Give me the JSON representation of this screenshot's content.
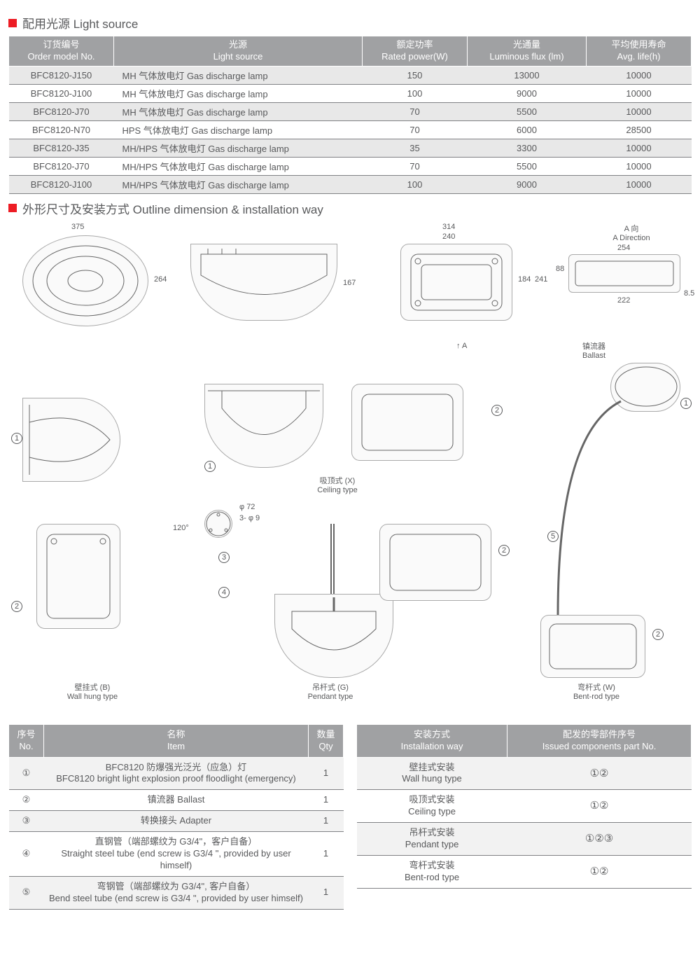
{
  "section1": {
    "title": "配用光源 Light source",
    "columns": [
      {
        "zh": "订货编号",
        "en": "Order model No."
      },
      {
        "zh": "光源",
        "en": "Light source"
      },
      {
        "zh": "额定功率",
        "en": "Rated power(W)"
      },
      {
        "zh": "光通量",
        "en": "Luminous flux (lm)"
      },
      {
        "zh": "平均使用寿命",
        "en": "Avg. life(h)"
      }
    ],
    "rows": [
      [
        "BFC8120-J150",
        "MH 气体放电灯 Gas discharge lamp",
        "150",
        "13000",
        "10000"
      ],
      [
        "BFC8120-J100",
        "MH 气体放电灯 Gas discharge lamp",
        "100",
        "9000",
        "10000"
      ],
      [
        "BFC8120-J70",
        "MH 气体放电灯 Gas discharge lamp",
        "70",
        "5500",
        "10000"
      ],
      [
        "BFC8120-N70",
        "HPS 气体放电灯 Gas discharge lamp",
        "70",
        "6000",
        "28500"
      ],
      [
        "BFC8120-J35",
        "MH/HPS 气体放电灯 Gas discharge lamp",
        "35",
        "3300",
        "10000"
      ],
      [
        "BFC8120-J70",
        "MH/HPS 气体放电灯 Gas discharge lamp",
        "70",
        "5500",
        "10000"
      ],
      [
        "BFC8120-J100",
        "MH/HPS 气体放电灯 Gas discharge lamp",
        "100",
        "9000",
        "10000"
      ]
    ]
  },
  "section2": {
    "title": "外形尺寸及安装方式 Outline dimension & installation way",
    "dimensions": {
      "d375": "375",
      "d264": "264",
      "d167": "167",
      "d314": "314",
      "d240": "240",
      "d184": "184",
      "d241": "241",
      "avzh": "A 向",
      "aven": "A Direction",
      "d254": "254",
      "d88": "88",
      "d222": "222",
      "d85": "8.5",
      "arrowA": "A",
      "ballast_zh": "镇流器",
      "ballast_en": "Ballast",
      "phi72": "φ 72",
      "phi9": "3- φ 9",
      "deg120": "120°",
      "ceiling_zh": "吸顶式 (X)",
      "ceiling_en": "Ceiling type",
      "wall_zh": "壁挂式 (B)",
      "wall_en": "Wall hung type",
      "pendant_zh": "吊杆式 (G)",
      "pendant_en": "Pendant type",
      "bent_zh": "弯杆式 (W)",
      "bent_en": "Bent-rod type"
    }
  },
  "items_table": {
    "columns": [
      {
        "zh": "序号",
        "en": "No."
      },
      {
        "zh": "名称",
        "en": "Item"
      },
      {
        "zh": "数量",
        "en": "Qty"
      }
    ],
    "rows": [
      {
        "no": "①",
        "item_zh": "BFC8120 防爆强光泛光（应急）灯",
        "item_en": "BFC8120 bright light explosion proof floodlight (emergency)",
        "qty": "1"
      },
      {
        "no": "②",
        "item_zh": "镇流器 Ballast",
        "item_en": "",
        "qty": "1"
      },
      {
        "no": "③",
        "item_zh": "转换接头 Adapter",
        "item_en": "",
        "qty": "1"
      },
      {
        "no": "④",
        "item_zh": "直钢管（端部螺纹为 G3/4\"，客户自备）",
        "item_en": "Straight steel tube (end screw is G3/4 \", provided by user himself)",
        "qty": "1"
      },
      {
        "no": "⑤",
        "item_zh": "弯钢管（端部螺纹为 G3/4\", 客户自备）",
        "item_en": "Bend steel tube (end screw is G3/4 \", provided by user himself)",
        "qty": "1"
      }
    ]
  },
  "install_table": {
    "columns": [
      {
        "zh": "安装方式",
        "en": "Installation way"
      },
      {
        "zh": "配发的零部件序号",
        "en": "Issued components part No."
      }
    ],
    "rows": [
      {
        "way_zh": "壁挂式安装",
        "way_en": "Wall hung type",
        "parts": "①②"
      },
      {
        "way_zh": "吸顶式安装",
        "way_en": "Ceiling type",
        "parts": "①②"
      },
      {
        "way_zh": "吊杆式安装",
        "way_en": "Pendant type",
        "parts": "①②③"
      },
      {
        "way_zh": "弯杆式安装",
        "way_en": "Bent-rod type",
        "parts": "①②"
      }
    ]
  },
  "colors": {
    "accent": "#ed1c24",
    "header_bg": "#a0a1a3",
    "text": "#58595b",
    "row_alt": "#e8e8e8",
    "border": "#808184"
  }
}
